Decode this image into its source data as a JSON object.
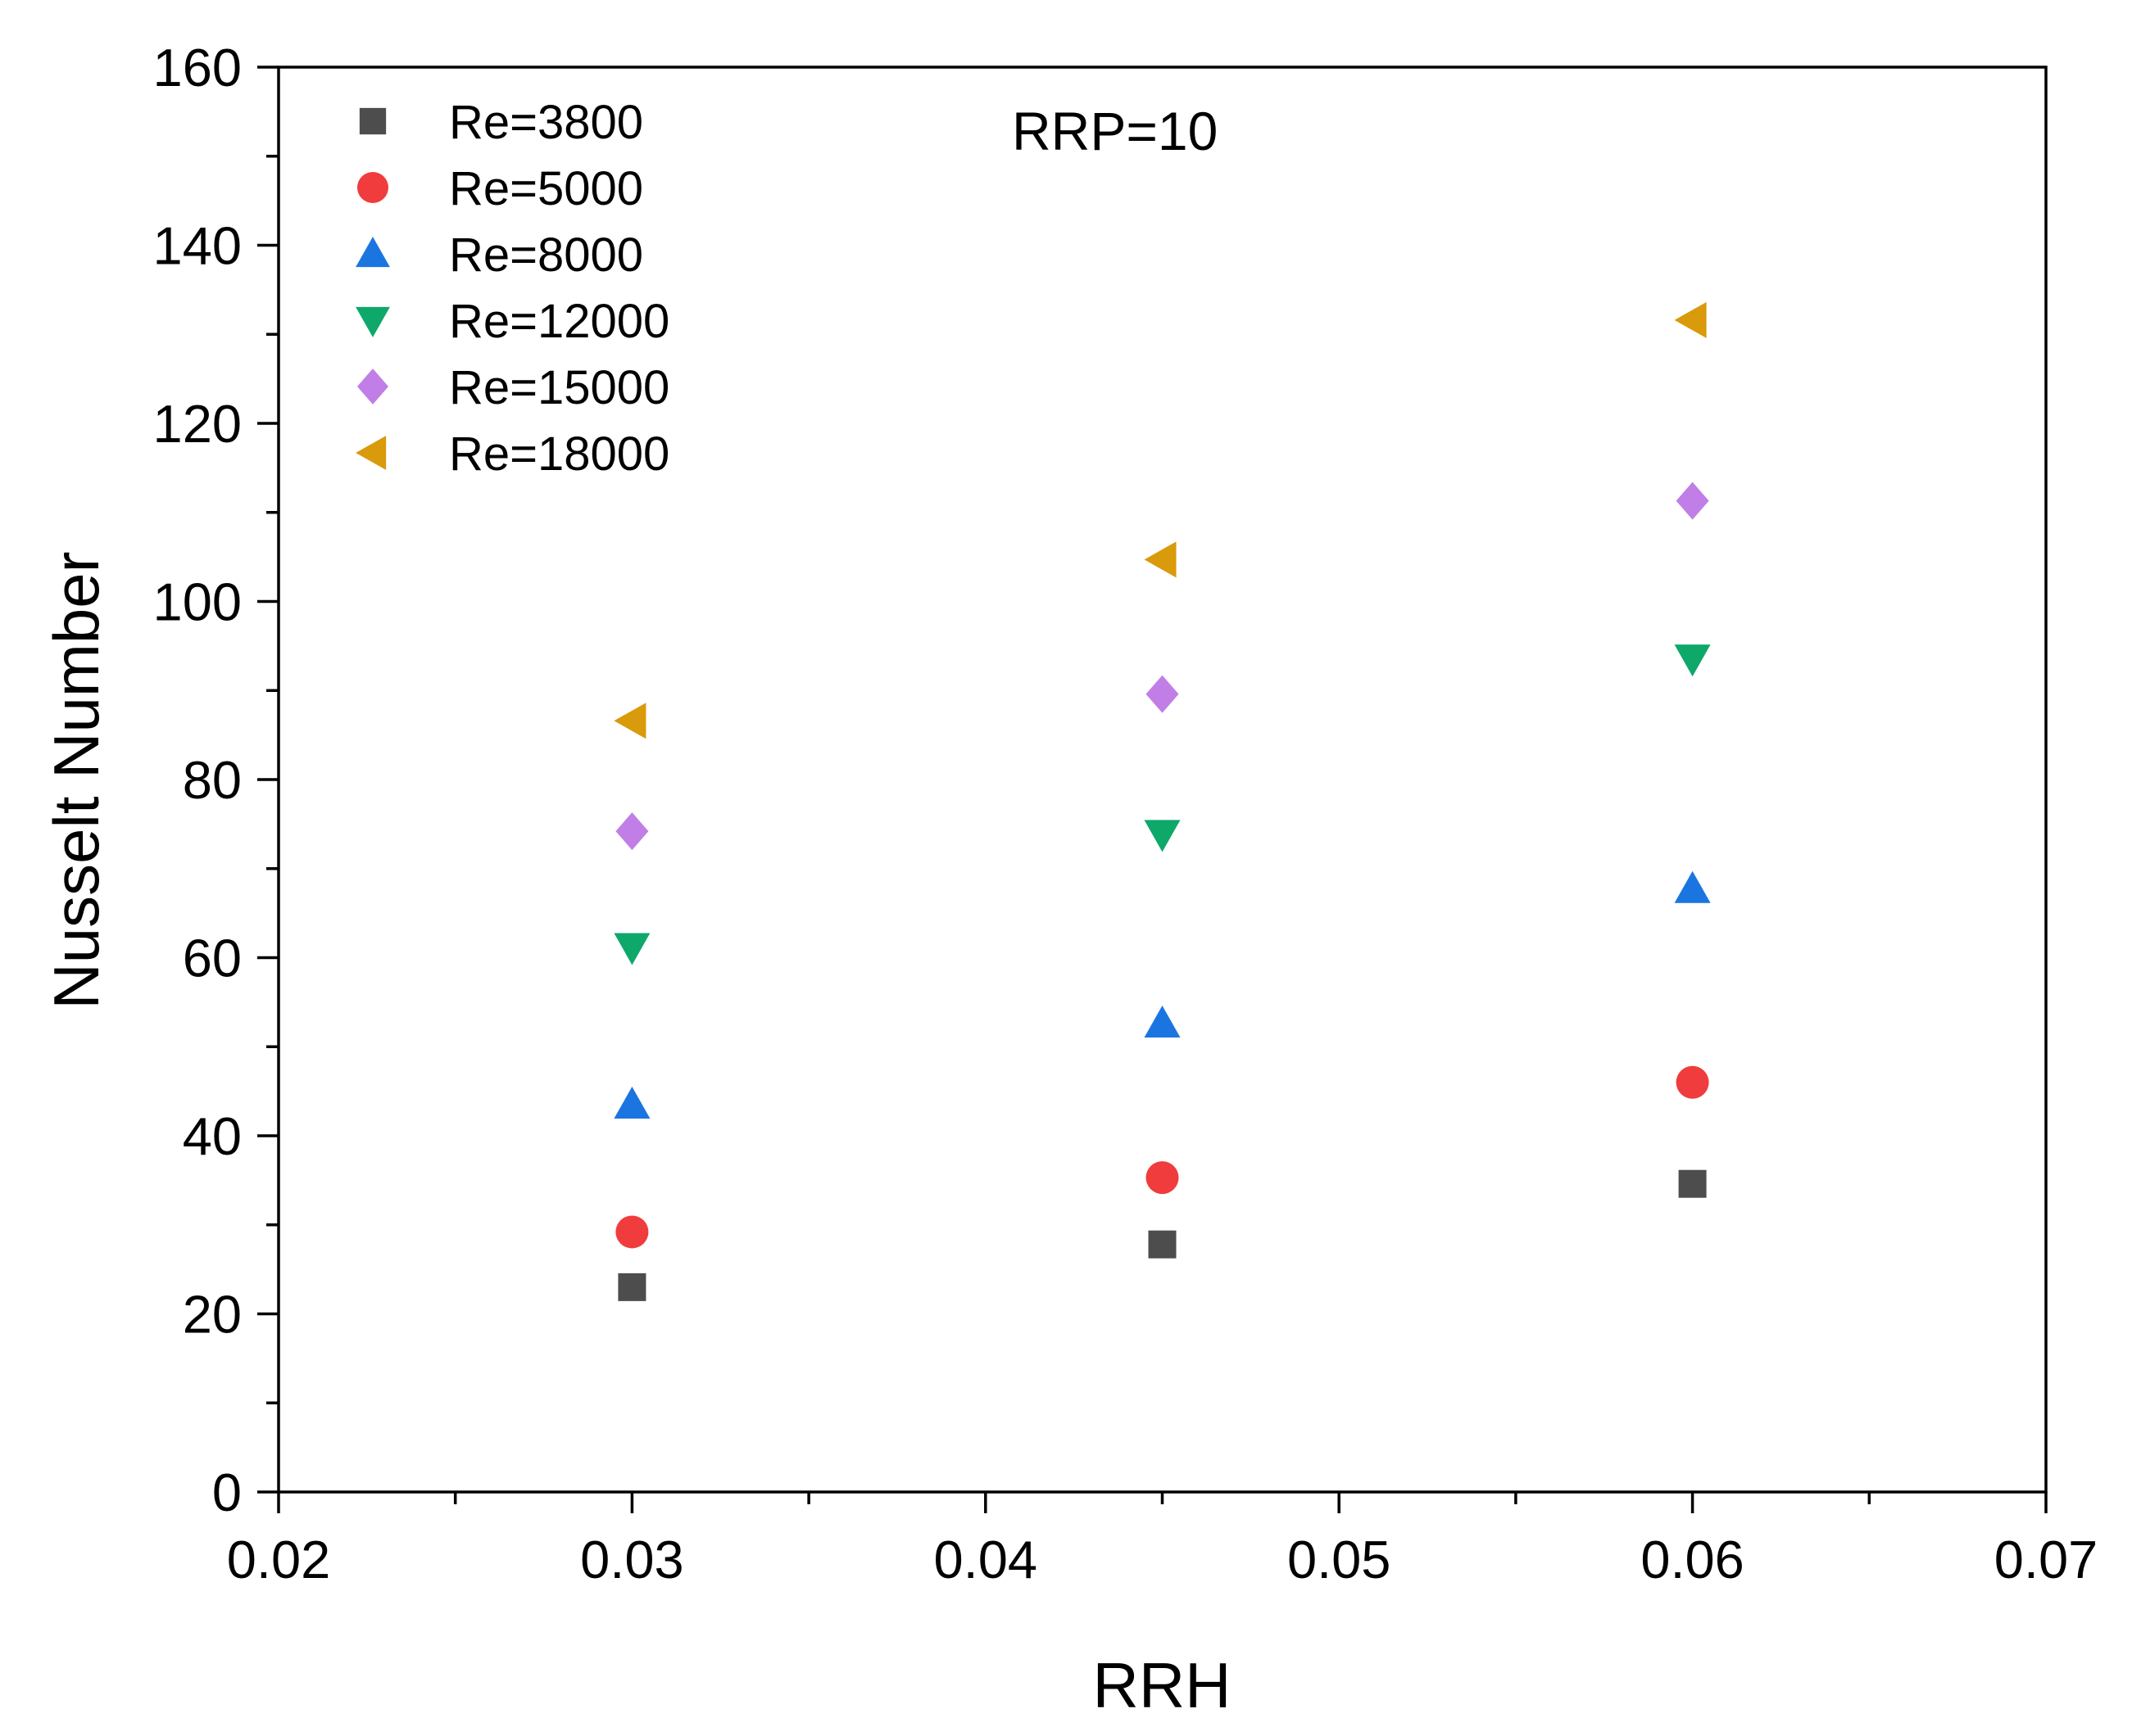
{
  "chart_data": {
    "type": "scatter",
    "title": "",
    "annotation": "RRP=10",
    "xlabel": "RRH",
    "ylabel": "Nusselt Number",
    "xlim": [
      0.02,
      0.07
    ],
    "ylim": [
      0,
      160
    ],
    "x_ticks": [
      0.02,
      0.03,
      0.04,
      0.05,
      0.06,
      0.07
    ],
    "x_tick_labels": [
      "0.02",
      "0.03",
      "0.04",
      "0.05",
      "0.06",
      "0.07"
    ],
    "y_ticks": [
      0,
      20,
      40,
      60,
      80,
      100,
      120,
      140,
      160
    ],
    "y_tick_labels": [
      "0",
      "20",
      "40",
      "60",
      "80",
      "100",
      "120",
      "140",
      "160"
    ],
    "x": [
      0.03,
      0.045,
      0.06
    ],
    "legend_position": "top-left",
    "grid": false,
    "series": [
      {
        "name": "Re=3800",
        "marker": "square",
        "color": "#4d4d4d",
        "values": [
          23.0,
          27.8,
          34.6
        ]
      },
      {
        "name": "Re=5000",
        "marker": "circle",
        "color": "#f03c3c",
        "values": [
          29.2,
          35.3,
          46.0
        ]
      },
      {
        "name": "Re=8000",
        "marker": "triangle-up",
        "color": "#1b75e0",
        "values": [
          43.5,
          52.6,
          67.7
        ]
      },
      {
        "name": "Re=12000",
        "marker": "triangle-down",
        "color": "#0ea86a",
        "values": [
          61.2,
          73.9,
          93.6
        ]
      },
      {
        "name": "Re=15000",
        "marker": "diamond",
        "color": "#c17ee6",
        "values": [
          74.2,
          89.6,
          111.3
        ]
      },
      {
        "name": "Re=18000",
        "marker": "triangle-left",
        "color": "#d99a0b",
        "values": [
          86.6,
          104.7,
          131.6
        ]
      }
    ]
  }
}
